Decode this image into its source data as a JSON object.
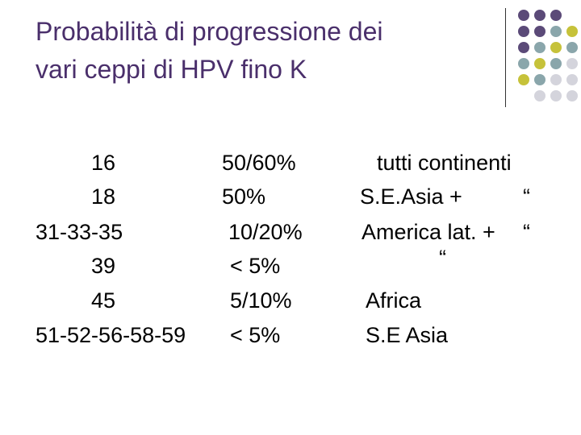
{
  "title": {
    "line1": "Probabilità di progressione dei",
    "line2": "vari ceppi di HPV fino K"
  },
  "rows": [
    {
      "type": "16",
      "probability": "50/60%",
      "region": "tutti continenti"
    },
    {
      "type": "18",
      "probability": "50%",
      "region": "S.E.Asia +",
      "mark": "“"
    },
    {
      "type": "31-33-35",
      "probability": "10/20%",
      "region": "America lat. +",
      "mark": "“"
    },
    {
      "type": "39",
      "probability": "< 5%",
      "region": "",
      "mark": "“"
    },
    {
      "type": "45",
      "probability": "5/10%",
      "region": "Africa"
    },
    {
      "type": "51-52-56-58-59",
      "probability": "< 5%",
      "region": "S.E Asia"
    }
  ],
  "decoration": {
    "colors": {
      "purple": "#5b4a78",
      "teal": "#8aa6ab",
      "olive": "#c6c23a",
      "gray": "#d4d4dc"
    }
  }
}
